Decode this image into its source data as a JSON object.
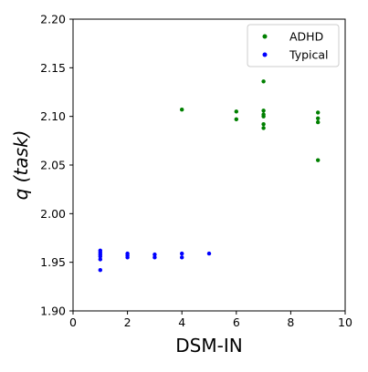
{
  "chart_data": {
    "type": "scatter",
    "xlabel": "DSM-IN",
    "ylabel": "q (task)",
    "xlim": [
      0,
      10
    ],
    "ylim": [
      1.9,
      2.2
    ],
    "x_ticks": [
      "0",
      "2",
      "4",
      "6",
      "8",
      "10"
    ],
    "y_ticks": [
      "1.90",
      "1.95",
      "2.00",
      "2.05",
      "2.10",
      "2.15",
      "2.20"
    ],
    "grid": false,
    "legend_position": "top-right",
    "series": [
      {
        "name": "ADHD",
        "color": "#008000",
        "points": [
          [
            4,
            2.107
          ],
          [
            6,
            2.105
          ],
          [
            6,
            2.097
          ],
          [
            7,
            2.136
          ],
          [
            7,
            2.106
          ],
          [
            7,
            2.102
          ],
          [
            7,
            2.1
          ],
          [
            7,
            2.092
          ],
          [
            7,
            2.088
          ],
          [
            9,
            2.104
          ],
          [
            9,
            2.098
          ],
          [
            9,
            2.094
          ],
          [
            9,
            2.055
          ]
        ]
      },
      {
        "name": "Typical",
        "color": "#0000ff",
        "points": [
          [
            1,
            1.962
          ],
          [
            1,
            1.96
          ],
          [
            1,
            1.958
          ],
          [
            1,
            1.956
          ],
          [
            1,
            1.953
          ],
          [
            1,
            1.942
          ],
          [
            2,
            1.959
          ],
          [
            2,
            1.957
          ],
          [
            2,
            1.955
          ],
          [
            3,
            1.958
          ],
          [
            3,
            1.955
          ],
          [
            4,
            1.959
          ],
          [
            4,
            1.955
          ],
          [
            5,
            1.959
          ]
        ]
      }
    ]
  }
}
